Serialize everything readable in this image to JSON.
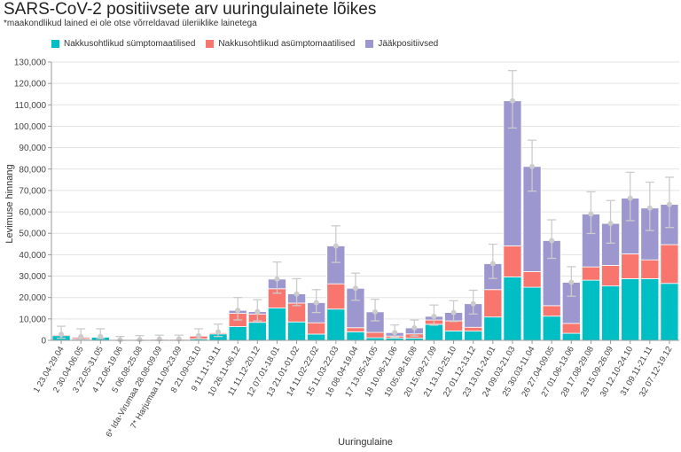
{
  "chart_data": {
    "type": "bar",
    "stacked": true,
    "title": "SARS-CoV-2 positiivsete arv uuringulainete lõikes",
    "subtitle": "*maakondlikud lained ei ole otse võrreldavad üleriiklike lainetega",
    "xlabel": "Uuringulaine",
    "ylabel": "Levimuse hinnang",
    "ylim": [
      0,
      130000
    ],
    "yticks": [
      "0",
      "10,000",
      "20,000",
      "30,000",
      "40,000",
      "50,000",
      "60,000",
      "70,000",
      "80,000",
      "90,000",
      "100,000",
      "110,000",
      "120,000",
      "130,000"
    ],
    "ytick_values": [
      0,
      10000,
      20000,
      30000,
      40000,
      50000,
      60000,
      70000,
      80000,
      90000,
      100000,
      110000,
      120000,
      130000
    ],
    "grid": true,
    "legend_position": "top",
    "categories": [
      "1 23.04-29.04",
      "2 30.04-06.05",
      "3 22.05-31.05",
      "4 12.06-19.06",
      "5 06.08-25.08",
      "6* Ida-Virumaa 28.08-09.09",
      "7* Harjumaa 11.09-23.09",
      "8 21.09-03.10",
      "9 11.11-19.11",
      "10 26.11-06.12",
      "11 11.12-20.12",
      "12 07.01-18.01",
      "13 21.01-01.02",
      "14 11.02-22.02",
      "15 11.03-22.03",
      "16 08.04-19.04",
      "17 13.05-24.05",
      "18 10.06-21.06",
      "19 05.08-16.08",
      "20 15.09-27.09",
      "21 13.10-25.10",
      "22 01.12-13.12",
      "23 13.01-24.01",
      "24 09.03-21.03",
      "25 30.03-11.04",
      "26 27.04-09.05",
      "27 01.06-13.06",
      "28 17.08-29.08",
      "29 15.09-26.09",
      "30 12.10-24.10",
      "31 09.11-21.11",
      "32 07.12-19.12"
    ],
    "series": [
      {
        "name": "Nakkusohtlikud sümptomaatilised",
        "color": "#00BFC4",
        "values": [
          2200,
          500,
          1500,
          100,
          100,
          100,
          100,
          600,
          3000,
          6400,
          8400,
          15100,
          8600,
          2900,
          14600,
          4000,
          1200,
          1000,
          1000,
          7500,
          4400,
          4300,
          10900,
          29600,
          24800,
          11300,
          3300,
          28100,
          25400,
          28800,
          28800,
          26600
        ]
      },
      {
        "name": "Nakkusohtlikud asümptomaatilised",
        "color": "#F8766D",
        "values": [
          500,
          800,
          200,
          50,
          150,
          400,
          400,
          1400,
          600,
          6200,
          3900,
          9000,
          8800,
          5300,
          11800,
          1900,
          2500,
          1000,
          2000,
          2000,
          4700,
          1800,
          12800,
          14500,
          7300,
          4900,
          4600,
          6200,
          9600,
          11600,
          8800,
          18100
        ]
      },
      {
        "name": "Jääkpositiivsed",
        "color": "#9C97CE",
        "values": [
          100,
          400,
          100,
          50,
          50,
          100,
          100,
          200,
          300,
          1400,
          1100,
          4500,
          4300,
          9400,
          17700,
          18400,
          9600,
          1600,
          2800,
          1700,
          3900,
          11000,
          12100,
          67800,
          49100,
          30400,
          19200,
          24700,
          19600,
          26000,
          24200,
          18800
        ]
      }
    ],
    "error_bars": {
      "upper": [
        6600,
        5400,
        5400,
        1800,
        2200,
        2400,
        2400,
        5400,
        7600,
        20000,
        19000,
        36600,
        28800,
        23700,
        53500,
        31400,
        19200,
        7200,
        9500,
        16500,
        18500,
        23400,
        44900,
        126000,
        93500,
        56300,
        34400,
        69400,
        65300,
        78500,
        73900,
        76200
      ],
      "lower": [
        1000,
        500,
        800,
        0,
        0,
        0,
        0,
        800,
        1800,
        9500,
        9100,
        22000,
        16200,
        13000,
        36400,
        18700,
        9100,
        1500,
        2000,
        7100,
        8800,
        12300,
        28900,
        99200,
        69700,
        38300,
        20600,
        49900,
        45400,
        55900,
        51300,
        52700
      ]
    }
  }
}
